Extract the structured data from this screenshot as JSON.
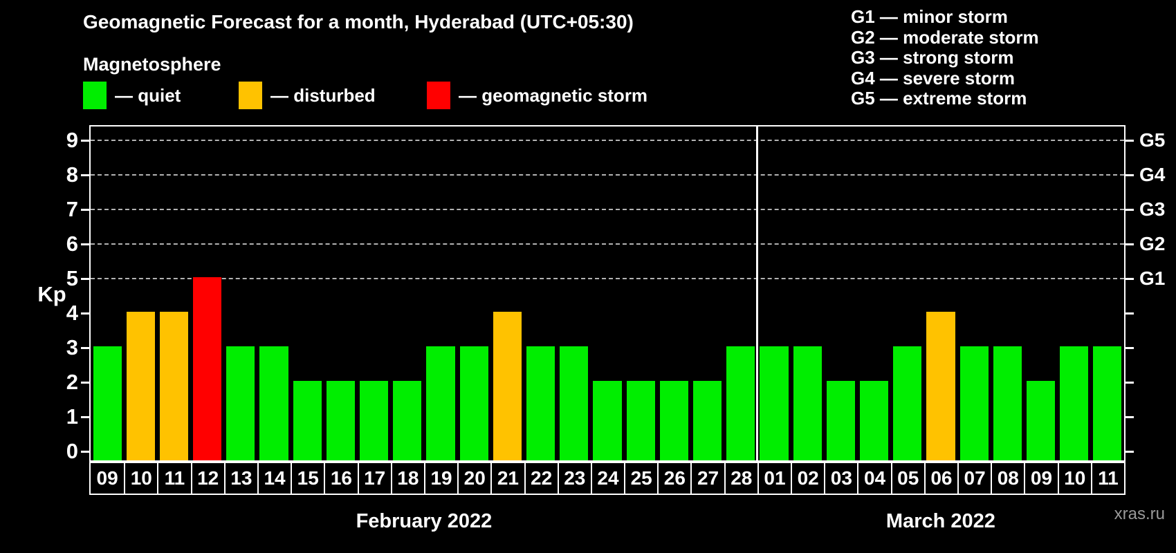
{
  "title": "Geomagnetic Forecast for a month, Hyderabad (UTC+05:30)",
  "watermark": "xras.ru",
  "magnetosphere_legend": {
    "heading": "Magnetosphere",
    "items": [
      {
        "name": "quiet",
        "label": "— quiet",
        "color": "#00ee00"
      },
      {
        "name": "disturbed",
        "label": "— disturbed",
        "color": "#ffc200"
      },
      {
        "name": "storm",
        "label": "— geomagnetic storm",
        "color": "#ff0000"
      }
    ]
  },
  "storm_scale_legend": [
    "G1 — minor storm",
    "G2 — moderate storm",
    "G3 — strong storm",
    "G4 — severe storm",
    "G5 — extreme storm"
  ],
  "chart_data": {
    "type": "bar",
    "title": "Geomagnetic Forecast for a month, Hyderabad (UTC+05:30)",
    "ylabel": "Kp",
    "ylim": [
      0,
      9
    ],
    "yticks": [
      0,
      1,
      2,
      3,
      4,
      5,
      6,
      7,
      8,
      9
    ],
    "gridlines_kp": [
      5,
      6,
      7,
      8,
      9
    ],
    "grid_style": "dashed",
    "right_axis": [
      {
        "kp": 5,
        "label": "G1"
      },
      {
        "kp": 6,
        "label": "G2"
      },
      {
        "kp": 7,
        "label": "G3"
      },
      {
        "kp": 8,
        "label": "G4"
      },
      {
        "kp": 9,
        "label": "G5"
      }
    ],
    "status_colors": {
      "quiet": "#00ee00",
      "disturbed": "#ffc200",
      "storm": "#ff0000"
    },
    "groups": [
      {
        "month_label": "February 2022",
        "points": [
          {
            "day": "09",
            "kp": 3,
            "status": "quiet"
          },
          {
            "day": "10",
            "kp": 4,
            "status": "disturbed"
          },
          {
            "day": "11",
            "kp": 4,
            "status": "disturbed"
          },
          {
            "day": "12",
            "kp": 5,
            "status": "storm"
          },
          {
            "day": "13",
            "kp": 3,
            "status": "quiet"
          },
          {
            "day": "14",
            "kp": 3,
            "status": "quiet"
          },
          {
            "day": "15",
            "kp": 2,
            "status": "quiet"
          },
          {
            "day": "16",
            "kp": 2,
            "status": "quiet"
          },
          {
            "day": "17",
            "kp": 2,
            "status": "quiet"
          },
          {
            "day": "18",
            "kp": 2,
            "status": "quiet"
          },
          {
            "day": "19",
            "kp": 3,
            "status": "quiet"
          },
          {
            "day": "20",
            "kp": 3,
            "status": "quiet"
          },
          {
            "day": "21",
            "kp": 4,
            "status": "disturbed"
          },
          {
            "day": "22",
            "kp": 3,
            "status": "quiet"
          },
          {
            "day": "23",
            "kp": 3,
            "status": "quiet"
          },
          {
            "day": "24",
            "kp": 2,
            "status": "quiet"
          },
          {
            "day": "25",
            "kp": 2,
            "status": "quiet"
          },
          {
            "day": "26",
            "kp": 2,
            "status": "quiet"
          },
          {
            "day": "27",
            "kp": 2,
            "status": "quiet"
          },
          {
            "day": "28",
            "kp": 3,
            "status": "quiet"
          }
        ]
      },
      {
        "month_label": "March 2022",
        "points": [
          {
            "day": "01",
            "kp": 3,
            "status": "quiet"
          },
          {
            "day": "02",
            "kp": 3,
            "status": "quiet"
          },
          {
            "day": "03",
            "kp": 2,
            "status": "quiet"
          },
          {
            "day": "04",
            "kp": 2,
            "status": "quiet"
          },
          {
            "day": "05",
            "kp": 3,
            "status": "quiet"
          },
          {
            "day": "06",
            "kp": 4,
            "status": "disturbed"
          },
          {
            "day": "07",
            "kp": 3,
            "status": "quiet"
          },
          {
            "day": "08",
            "kp": 3,
            "status": "quiet"
          },
          {
            "day": "09",
            "kp": 2,
            "status": "quiet"
          },
          {
            "day": "10",
            "kp": 3,
            "status": "quiet"
          },
          {
            "day": "11",
            "kp": 3,
            "status": "quiet"
          }
        ]
      }
    ]
  }
}
